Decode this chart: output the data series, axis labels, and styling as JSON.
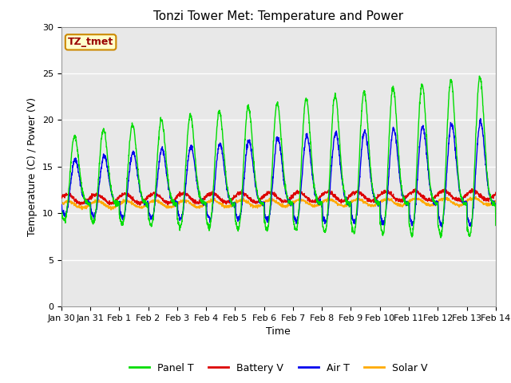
{
  "title": "Tonzi Tower Met: Temperature and Power",
  "xlabel": "Time",
  "ylabel": "Temperature (C) / Power (V)",
  "ylim": [
    0,
    30
  ],
  "yticks": [
    0,
    5,
    10,
    15,
    20,
    25,
    30
  ],
  "plot_bg_color": "#e8e8e8",
  "fig_bg_color": "#ffffff",
  "annotation_text": "TZ_tmet",
  "annotation_color": "#990000",
  "annotation_bg": "#ffffcc",
  "annotation_border": "#cc8800",
  "legend_entries": [
    "Panel T",
    "Battery V",
    "Air T",
    "Solar V"
  ],
  "legend_colors": [
    "#00dd00",
    "#dd0000",
    "#0000ee",
    "#ffaa00"
  ],
  "x_tick_labels": [
    "Jan 30",
    "Jan 31",
    "Feb 1",
    "Feb 2",
    "Feb 3",
    "Feb 4",
    "Feb 5",
    "Feb 6",
    "Feb 7",
    "Feb 8",
    "Feb 9",
    "Feb 10",
    "Feb 11",
    "Feb 12",
    "Feb 13",
    "Feb 14"
  ],
  "num_days": 15,
  "title_fontsize": 11,
  "axis_fontsize": 9,
  "tick_fontsize": 8
}
